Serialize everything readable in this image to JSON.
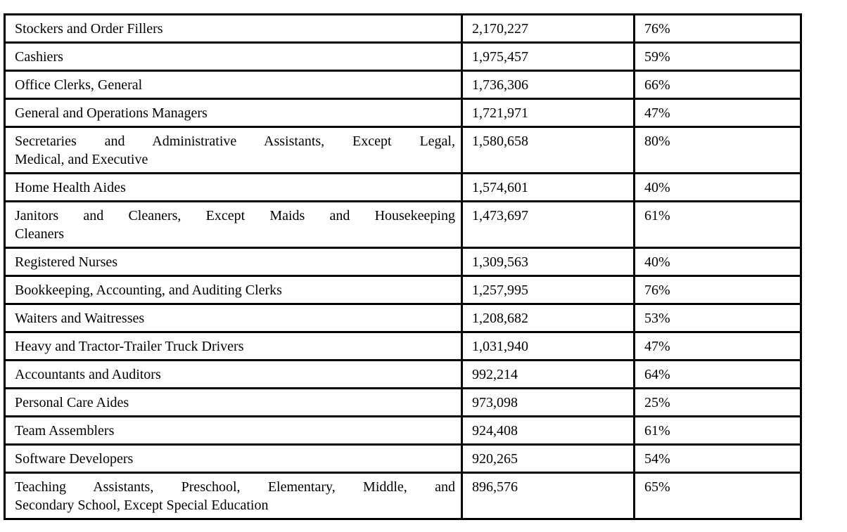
{
  "document": {
    "kind": "occupations-employment-table",
    "background_color": "#ffffff",
    "text_color": "#000000",
    "border_color": "#000000"
  },
  "table": {
    "columns": [
      {
        "name": "occupation"
      },
      {
        "name": "employment"
      },
      {
        "name": "percent"
      }
    ],
    "rows": [
      {
        "occupation_lines": [
          "Stockers and Order Fillers"
        ],
        "employment": "2,170,227",
        "percent": "76%"
      },
      {
        "occupation_lines": [
          "Cashiers"
        ],
        "employment": "1,975,457",
        "percent": "59%"
      },
      {
        "occupation_lines": [
          "Office Clerks, General"
        ],
        "employment": "1,736,306",
        "percent": "66%"
      },
      {
        "occupation_lines": [
          "General and Operations Managers"
        ],
        "employment": "1,721,971",
        "percent": "47%"
      },
      {
        "occupation_lines": [
          "Secretaries and Administrative Assistants, Except Legal,",
          "Medical, and Executive"
        ],
        "employment": "1,580,658",
        "percent": "80%"
      },
      {
        "occupation_lines": [
          "Home Health Aides"
        ],
        "employment": "1,574,601",
        "percent": "40%"
      },
      {
        "occupation_lines": [
          "Janitors and Cleaners, Except Maids and Housekeeping",
          "Cleaners"
        ],
        "employment": "1,473,697",
        "percent": "61%"
      },
      {
        "occupation_lines": [
          "Registered Nurses"
        ],
        "employment": "1,309,563",
        "percent": "40%"
      },
      {
        "occupation_lines": [
          "Bookkeeping, Accounting, and Auditing Clerks"
        ],
        "employment": "1,257,995",
        "percent": "76%"
      },
      {
        "occupation_lines": [
          "Waiters and Waitresses"
        ],
        "employment": "1,208,682",
        "percent": "53%"
      },
      {
        "occupation_lines": [
          "Heavy and Tractor-Trailer Truck Drivers"
        ],
        "employment": "1,031,940",
        "percent": "47%"
      },
      {
        "occupation_lines": [
          "Accountants and Auditors"
        ],
        "employment": "992,214",
        "percent": "64%"
      },
      {
        "occupation_lines": [
          "Personal Care Aides"
        ],
        "employment": "973,098",
        "percent": "25%"
      },
      {
        "occupation_lines": [
          "Team Assemblers"
        ],
        "employment": "924,408",
        "percent": "61%"
      },
      {
        "occupation_lines": [
          "Software Developers"
        ],
        "employment": "920,265",
        "percent": "54%"
      },
      {
        "occupation_lines": [
          "Teaching Assistants, Preschool, Elementary, Middle, and",
          "Secondary School, Except Special Education"
        ],
        "employment": "896,576",
        "percent": "65%"
      }
    ]
  }
}
